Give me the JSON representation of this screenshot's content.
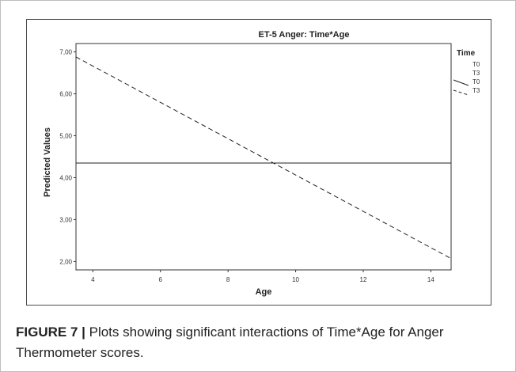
{
  "chart_data": {
    "type": "line",
    "title": "ET-5 Anger: Time*Age",
    "xlabel": "Age",
    "ylabel": "Predicted Values",
    "xlim": [
      3.5,
      14.6
    ],
    "ylim": [
      1.8,
      7.2
    ],
    "x_ticks": [
      "4",
      "6",
      "8",
      "10",
      "12",
      "14"
    ],
    "y_ticks": [
      "2,00",
      "3,00",
      "4,00",
      "5,00",
      "6,00",
      "7,00"
    ],
    "legend_title": "Time",
    "legend_entries": [
      "T0",
      "T3",
      "T0",
      "T3"
    ],
    "legend_position": "right",
    "series": [
      {
        "name": "T0",
        "style": "solid",
        "x": [
          3.5,
          14.6
        ],
        "y": [
          4.35,
          4.35
        ]
      },
      {
        "name": "T3",
        "style": "dashed",
        "x": [
          3.5,
          14.6
        ],
        "y": [
          6.88,
          2.07
        ]
      }
    ],
    "colors": {
      "line": "#222222",
      "axis": "#333333"
    }
  },
  "caption": {
    "label": "FIGURE 7 |",
    "text": " Plots showing significant interactions of Time*Age for Anger Thermometer scores."
  }
}
